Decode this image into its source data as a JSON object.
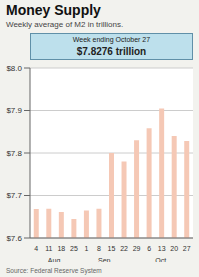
{
  "chart_data": {
    "type": "bar",
    "title": "Money Supply",
    "subtitle": "Weekly average of M2 in trillions.",
    "categories": [
      "4",
      "11",
      "18",
      "25",
      "1",
      "8",
      "15",
      "22",
      "29",
      "6",
      "13",
      "20",
      "27"
    ],
    "values": [
      7.668,
      7.669,
      7.661,
      7.645,
      7.665,
      7.669,
      7.8,
      7.78,
      7.83,
      7.858,
      7.905,
      7.84,
      7.828
    ],
    "color": "#F5C8B5",
    "ylim": [
      7.6,
      8.0
    ],
    "yticks": [
      {
        "value": 7.6,
        "label": "$7.6"
      },
      {
        "value": 7.7,
        "label": "$7.7"
      },
      {
        "value": 7.8,
        "label": "$7.8"
      },
      {
        "value": 7.9,
        "label": "$7.9"
      },
      {
        "value": 8.0,
        "label": "$8.0"
      }
    ],
    "grid": true,
    "month_labels": [
      {
        "label": "Aug.",
        "pos": 1.5
      },
      {
        "label": "Sep.",
        "pos": 5.5
      },
      {
        "label": "Oct.",
        "pos": 10.0
      }
    ],
    "annotations": [
      "Week ending October 27",
      "$7.8276 trillion"
    ],
    "source": "Source: Federal Reserve System"
  }
}
